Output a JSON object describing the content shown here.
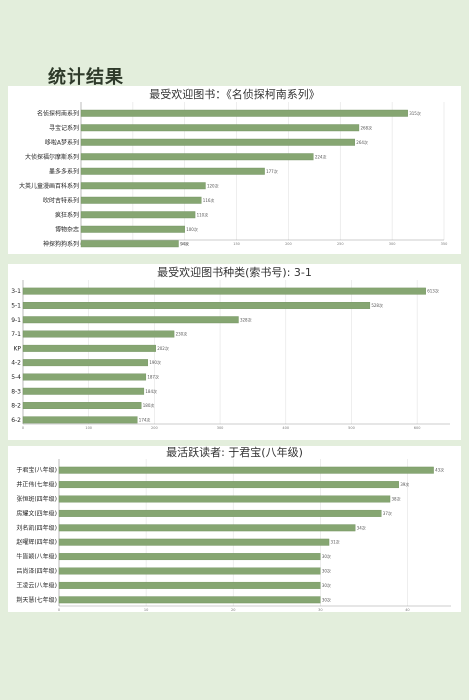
{
  "page": {
    "title": "统计结果"
  },
  "colors": {
    "bar": "#86a672",
    "bar_edge": "#6f8f5d",
    "grid": "#e2e2e2",
    "axis": "#999999",
    "background": "#e3eedc"
  },
  "chart_data": [
    {
      "type": "bar",
      "orientation": "horizontal",
      "title": "最受欢迎图书：《名侦探柯南系列》",
      "categories": [
        "名侦探柯南系列",
        "寻宝记系列",
        "哆啦A梦系列",
        "大侦探福尔摩斯系列",
        "墨多多系列",
        "大英儿童漫画百科系列",
        "吹时吉特系列",
        "疯狂系列",
        "博物杂志",
        "神探狗狗系列"
      ],
      "values": [
        315,
        268,
        264,
        224,
        177,
        120,
        116,
        110,
        100,
        94
      ],
      "value_labels": [
        "315次",
        "268次",
        "264次",
        "224次",
        "177次",
        "120次",
        "116次",
        "110次",
        "100次",
        "94次"
      ],
      "xlim": [
        0,
        350
      ],
      "xticks": [
        "0",
        "50",
        "100",
        "150",
        "200",
        "250",
        "300",
        "350"
      ],
      "grid": true
    },
    {
      "type": "bar",
      "orientation": "horizontal",
      "title": "最受欢迎图书种类(索书号): 3-1",
      "categories": [
        "3-1",
        "5-1",
        "9-1",
        "7-1",
        "KP",
        "4-2",
        "5-4",
        "8-3",
        "8-2",
        "6-2"
      ],
      "values": [
        613,
        528,
        328,
        230,
        202,
        190,
        187,
        184,
        180,
        174
      ],
      "value_labels": [
        "613次",
        "528次",
        "328次",
        "230次",
        "202次",
        "190次",
        "187次",
        "184次",
        "180次",
        "174次"
      ],
      "xlim": [
        0,
        650
      ],
      "xticks": [
        "0",
        "100",
        "200",
        "300",
        "400",
        "500",
        "600"
      ],
      "grid": true
    },
    {
      "type": "bar",
      "orientation": "horizontal",
      "title": "最活跃读者: 于君宝(八年级)",
      "categories": [
        "于君宝(八年级)",
        "井正伟(七年级)",
        "张恒斑(四年级)",
        "房耀文(四年级)",
        "刘名凯(四年级)",
        "赵曜辉(四年级)",
        "牛皆颖(八年级)",
        "吕尚泽(四年级)",
        "王凌云(八年级)",
        "荆天慧(七年级)"
      ],
      "values": [
        43,
        39,
        38,
        37,
        34,
        31,
        30,
        30,
        30,
        30
      ],
      "value_labels": [
        "43次",
        "39次",
        "38次",
        "37次",
        "34次",
        "31次",
        "30次",
        "30次",
        "30次",
        "30次"
      ],
      "xlim": [
        0,
        45
      ],
      "xticks": [
        "0",
        "10",
        "20",
        "30",
        "40"
      ],
      "grid": true
    }
  ]
}
